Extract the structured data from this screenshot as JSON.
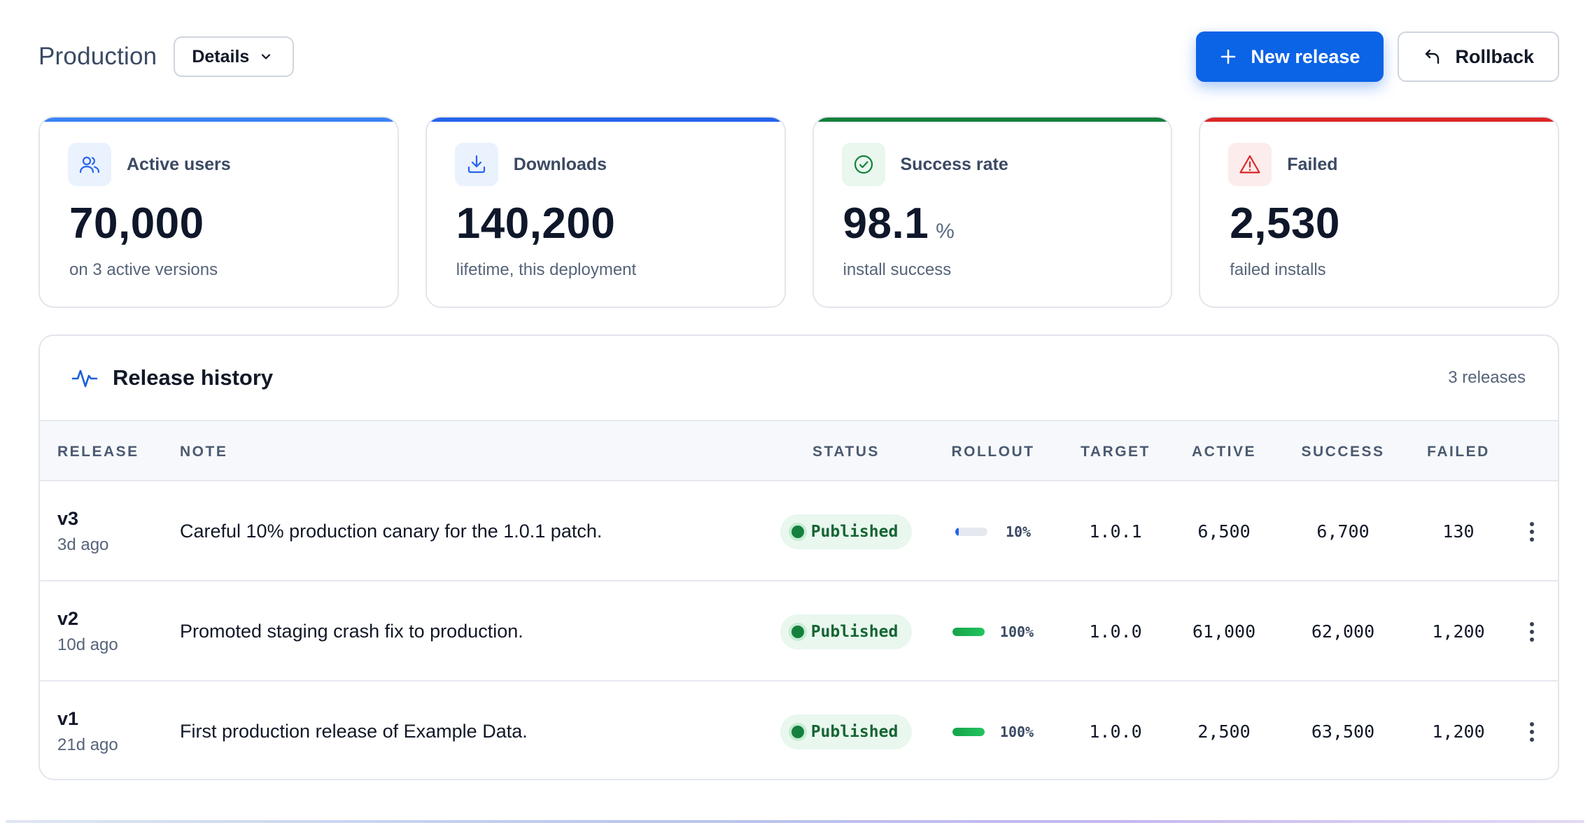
{
  "header": {
    "title": "Production",
    "details_label": "Details",
    "new_release_label": "New release",
    "rollback_label": "Rollback"
  },
  "colors": {
    "accent": "#0b63e5",
    "stat_bar_users": "#3b82f6",
    "stat_bar_downloads": "#2563eb",
    "stat_bar_success": "#15803d",
    "stat_bar_failed": "#dc2626",
    "status_published": "#166534"
  },
  "stats": [
    {
      "label": "Active users",
      "value": "70,000",
      "unit": "",
      "sub": "on 3 active versions",
      "icon": "users-icon"
    },
    {
      "label": "Downloads",
      "value": "140,200",
      "unit": "",
      "sub": "lifetime, this deployment",
      "icon": "download-icon"
    },
    {
      "label": "Success rate",
      "value": "98.1",
      "unit": "%",
      "sub": "install success",
      "icon": "check-circle-icon"
    },
    {
      "label": "Failed",
      "value": "2,530",
      "unit": "",
      "sub": "failed installs",
      "icon": "warning-triangle-icon"
    }
  ],
  "history": {
    "title": "Release history",
    "count": "3 releases",
    "columns": [
      "RELEASE",
      "NOTE",
      "STATUS",
      "ROLLOUT",
      "TARGET",
      "ACTIVE",
      "SUCCESS",
      "FAILED"
    ],
    "rows": [
      {
        "release": "v3",
        "age": "3d ago",
        "note": "Careful 10% production canary for the 1.0.1 patch.",
        "status": "Published",
        "rollout": "10%",
        "rollout_fraction": 0.1,
        "target": "1.0.1",
        "active": "6,500",
        "success": "6,700",
        "failed": "130"
      },
      {
        "release": "v2",
        "age": "10d ago",
        "note": "Promoted staging crash fix to production.",
        "status": "Published",
        "rollout": "100%",
        "rollout_fraction": 1.0,
        "target": "1.0.0",
        "active": "61,000",
        "success": "62,000",
        "failed": "1,200"
      },
      {
        "release": "v1",
        "age": "21d ago",
        "note": "First production release of Example Data.",
        "status": "Published",
        "rollout": "100%",
        "rollout_fraction": 1.0,
        "target": "1.0.0",
        "active": "2,500",
        "success": "63,500",
        "failed": "1,200"
      }
    ]
  }
}
